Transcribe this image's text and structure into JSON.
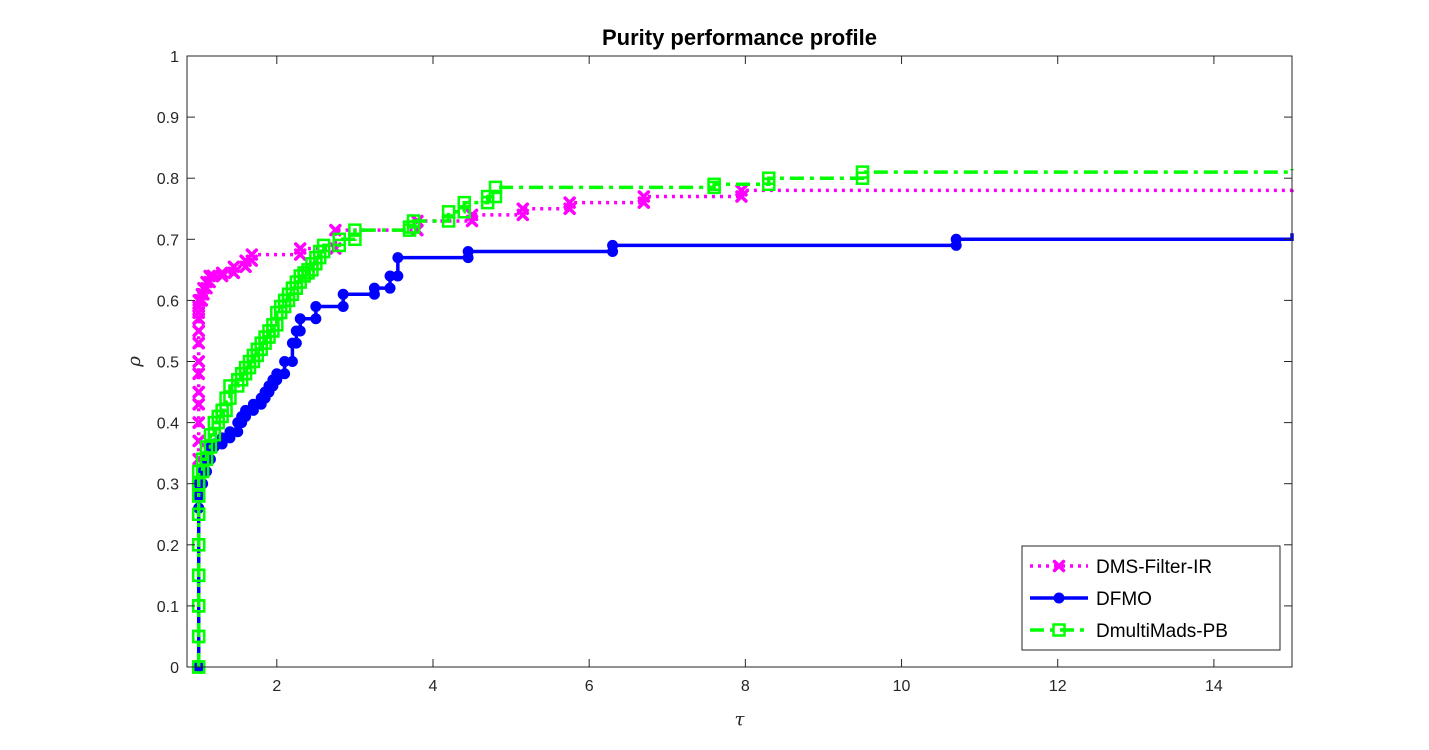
{
  "chart_data": {
    "type": "line",
    "title": "Purity performance profile",
    "xlabel": "τ",
    "ylabel": "ρ",
    "xlim": [
      0.85,
      15
    ],
    "ylim": [
      0,
      1
    ],
    "xticks": [
      2,
      4,
      6,
      8,
      10,
      12,
      14
    ],
    "yticks": [
      0,
      0.1,
      0.2,
      0.3,
      0.4,
      0.5,
      0.6,
      0.7,
      0.8,
      0.9,
      1
    ],
    "grid": false,
    "legend_position": "bottom-right",
    "series": [
      {
        "name": "DMS-Filter-IR",
        "color": "#ff00ff",
        "line_style": "dotted",
        "marker": "x",
        "x": [
          1.0,
          1.0,
          1.0,
          1.0,
          1.0,
          1.0,
          1.0,
          1.0,
          1.0,
          1.0,
          1.0,
          1.0,
          1.0,
          1.0,
          1.0,
          1.0,
          1.02,
          1.04,
          1.06,
          1.1,
          1.14,
          1.18,
          1.3,
          1.45,
          1.6,
          1.68,
          2.3,
          2.75,
          3.8,
          4.5,
          5.15,
          5.75,
          6.7,
          7.95,
          15.0
        ],
        "y": [
          0.34,
          0.37,
          0.4,
          0.43,
          0.45,
          0.48,
          0.5,
          0.53,
          0.55,
          0.57,
          0.57,
          0.58,
          0.58,
          0.59,
          0.59,
          0.6,
          0.6,
          0.61,
          0.62,
          0.63,
          0.64,
          0.64,
          0.645,
          0.655,
          0.665,
          0.675,
          0.685,
          0.715,
          0.73,
          0.74,
          0.75,
          0.76,
          0.77,
          0.78,
          0.785
        ]
      },
      {
        "name": "DFMO",
        "color": "#0000ff",
        "line_style": "solid",
        "marker": "o",
        "x": [
          1.0,
          1.0,
          1.0,
          1.0,
          1.05,
          1.1,
          1.15,
          1.2,
          1.3,
          1.4,
          1.5,
          1.55,
          1.6,
          1.7,
          1.8,
          1.85,
          1.9,
          1.95,
          2.0,
          2.1,
          2.2,
          2.25,
          2.3,
          2.5,
          2.85,
          3.25,
          3.45,
          3.55,
          4.45,
          6.3,
          10.7,
          15.0
        ],
        "y": [
          0.0,
          0.26,
          0.28,
          0.3,
          0.32,
          0.34,
          0.36,
          0.365,
          0.375,
          0.385,
          0.4,
          0.41,
          0.42,
          0.43,
          0.44,
          0.45,
          0.46,
          0.47,
          0.48,
          0.5,
          0.53,
          0.55,
          0.57,
          0.59,
          0.61,
          0.62,
          0.64,
          0.67,
          0.68,
          0.69,
          0.7,
          0.71
        ]
      },
      {
        "name": "DmultiMads-PB",
        "color": "#00ff00",
        "line_style": "dash-dot",
        "marker": "s",
        "x": [
          1.0,
          1.0,
          1.0,
          1.0,
          1.0,
          1.0,
          1.0,
          1.0,
          1.0,
          1.05,
          1.1,
          1.15,
          1.2,
          1.25,
          1.3,
          1.35,
          1.4,
          1.5,
          1.55,
          1.6,
          1.65,
          1.7,
          1.75,
          1.8,
          1.85,
          1.9,
          1.95,
          2.0,
          2.05,
          2.1,
          2.15,
          2.2,
          2.25,
          2.3,
          2.35,
          2.4,
          2.45,
          2.5,
          2.55,
          2.6,
          2.8,
          3.0,
          3.7,
          3.75,
          4.2,
          4.4,
          4.7,
          4.8,
          7.6,
          8.3,
          9.5,
          15.0
        ],
        "y": [
          0.0,
          0.05,
          0.1,
          0.15,
          0.2,
          0.25,
          0.28,
          0.3,
          0.32,
          0.34,
          0.36,
          0.38,
          0.4,
          0.41,
          0.42,
          0.44,
          0.46,
          0.47,
          0.48,
          0.49,
          0.5,
          0.51,
          0.52,
          0.53,
          0.54,
          0.55,
          0.56,
          0.58,
          0.59,
          0.6,
          0.61,
          0.62,
          0.63,
          0.64,
          0.645,
          0.65,
          0.66,
          0.67,
          0.68,
          0.69,
          0.7,
          0.715,
          0.72,
          0.73,
          0.745,
          0.76,
          0.77,
          0.785,
          0.79,
          0.8,
          0.81,
          0.815
        ]
      }
    ]
  }
}
